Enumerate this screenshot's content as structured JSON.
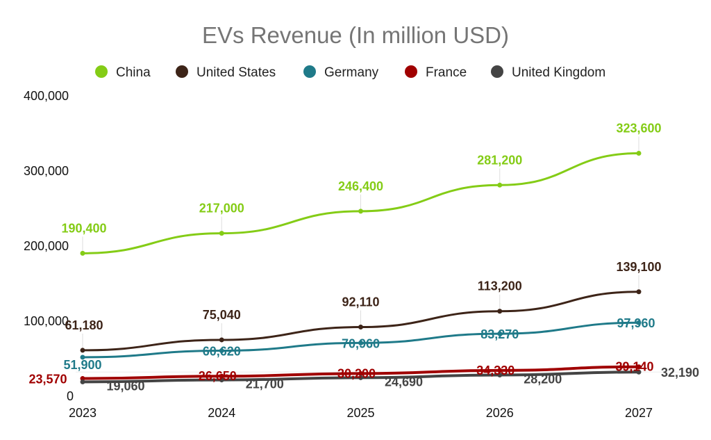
{
  "chart_data": {
    "type": "line",
    "title": "EVs Revenue (In million USD)",
    "xlabel": "",
    "ylabel": "",
    "categories": [
      "2023",
      "2024",
      "2025",
      "2026",
      "2027"
    ],
    "ylim": [
      0,
      400000
    ],
    "yticks": [
      "0",
      "100,000",
      "200,000",
      "300,000",
      "400,000"
    ],
    "grid": false,
    "legend_position": "top",
    "series": [
      {
        "name": "China",
        "color": "#84cc16",
        "values": [
          190400,
          217000,
          246400,
          281200,
          323600
        ],
        "labels": [
          "190,400",
          "217,000",
          "246,400",
          "281,200",
          "323,600"
        ]
      },
      {
        "name": "United States",
        "color": "#3d2418",
        "values": [
          61180,
          75040,
          92110,
          113200,
          139100
        ],
        "labels": [
          "61,180",
          "75,040",
          "92,110",
          "113,200",
          "139,100"
        ]
      },
      {
        "name": "Germany",
        "color": "#1f7a89",
        "values": [
          51900,
          60620,
          70960,
          83270,
          97960
        ],
        "labels": [
          "51,900",
          "60,620",
          "70,960",
          "83,270",
          "97,960"
        ]
      },
      {
        "name": "France",
        "color": "#a00000",
        "values": [
          23570,
          26650,
          30200,
          34330,
          39140
        ],
        "labels": [
          "23,570",
          "26,650",
          "30,200",
          "34,330",
          "39,140"
        ]
      },
      {
        "name": "United Kingdom",
        "color": "#444444",
        "values": [
          19060,
          21700,
          24690,
          28200,
          32190
        ],
        "labels": [
          "19,060",
          "21,700",
          "24,690",
          "28,200",
          "32,190"
        ]
      }
    ]
  }
}
